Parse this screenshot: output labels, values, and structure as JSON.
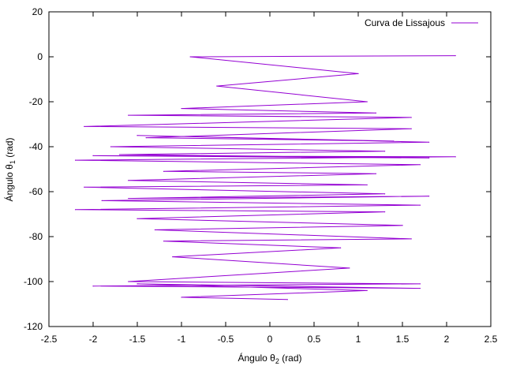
{
  "chart_data": {
    "type": "line",
    "title": "",
    "xlabel": "Ángulo θ2 (rad)",
    "xlabel_parts": {
      "main": "Ángulo θ",
      "sub": "2",
      "tail": " (rad)"
    },
    "ylabel": "Ángulo θ1 (rad)",
    "ylabel_parts": {
      "main": "Ángulo θ",
      "sub": "1",
      "tail": " (rad)"
    },
    "xlim": [
      -2.5,
      2.5
    ],
    "ylim": [
      -120,
      20
    ],
    "xticks": [
      "-2.5",
      "-2",
      "-1.5",
      "-1",
      "-0.5",
      "0",
      "0.5",
      "1",
      "1.5",
      "2",
      "2.5"
    ],
    "yticks": [
      "20",
      "0",
      "-20",
      "-40",
      "-60",
      "-80",
      "-100",
      "-120"
    ],
    "grid": false,
    "legend_position": "top-right",
    "series": [
      {
        "name": "Curva de Lissajous",
        "color": "#9400d3",
        "x": [
          2.1,
          -0.9,
          1.0,
          -0.6,
          1.1,
          -1.0,
          1.2,
          -1.6,
          1.6,
          -2.1,
          1.6,
          -1.4,
          1.4,
          -1.5,
          1.8,
          -1.8,
          1.3,
          -1.7,
          1.8,
          -2.0,
          2.1,
          -2.2,
          1.7,
          -1.2,
          1.2,
          -1.6,
          1.1,
          -2.1,
          1.3,
          -1.6,
          1.8,
          -1.9,
          1.7,
          -2.2,
          1.3,
          -1.5,
          1.5,
          -1.3,
          1.6,
          -1.2,
          0.8,
          -1.1,
          0.9,
          -1.6,
          1.7,
          -2.0,
          1.7,
          -1.5,
          1.1,
          -1.0,
          0.2
        ],
        "y": [
          0.5,
          0.0,
          -7.5,
          -13.0,
          -20.0,
          -23.0,
          -25.0,
          -26.0,
          -27.0,
          -31.0,
          -32.0,
          -36.0,
          -37.5,
          -35.0,
          -38.0,
          -40.0,
          -42.0,
          -43.5,
          -45.0,
          -44.0,
          -44.5,
          -46.0,
          -48.0,
          -51.0,
          -52.0,
          -55.0,
          -57.0,
          -58.0,
          -61.0,
          -63.0,
          -62.0,
          -64.0,
          -66.0,
          -68.0,
          -69.0,
          -72.0,
          -75.0,
          -77.0,
          -81.0,
          -82.0,
          -85.0,
          -89.0,
          -94.0,
          -100.0,
          -101.0,
          -102.0,
          -103.0,
          -101.0,
          -104.0,
          -107.0,
          -108.0
        ]
      }
    ]
  }
}
